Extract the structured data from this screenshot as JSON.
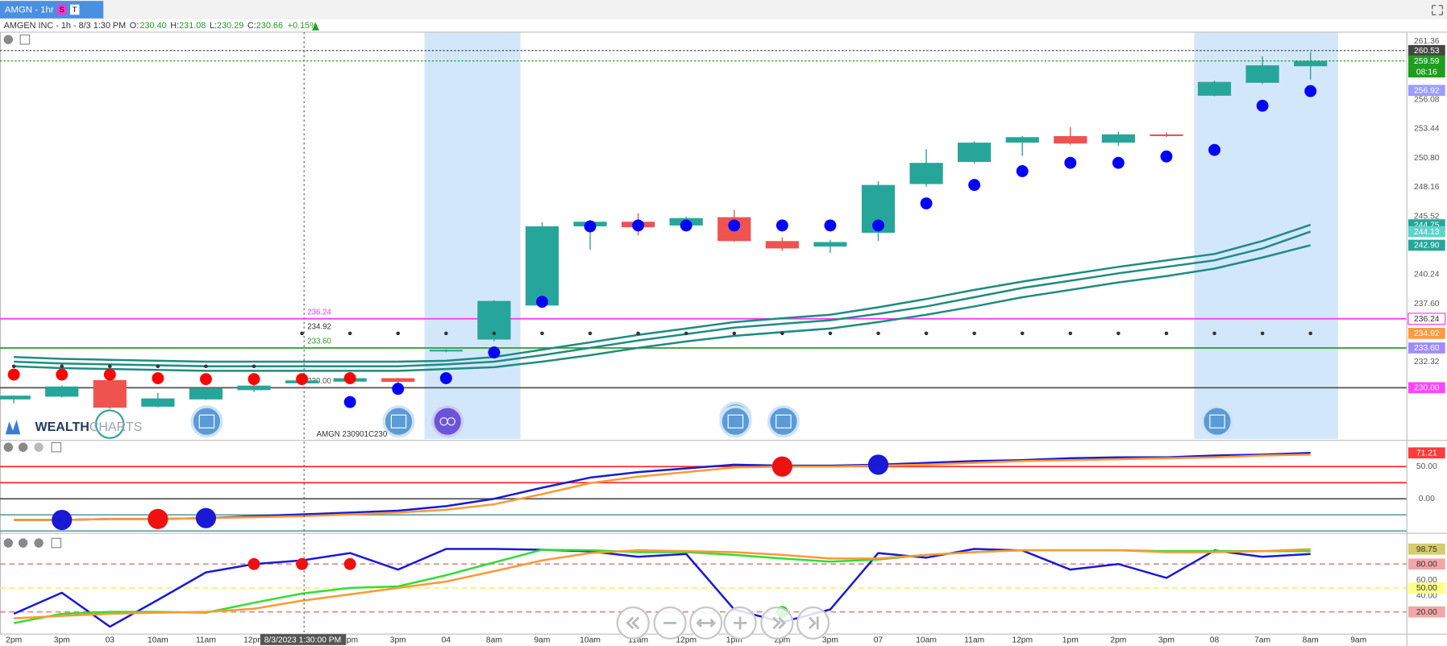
{
  "header": {
    "tab": "AMGN - 1hr",
    "badges": [
      "S",
      "T"
    ],
    "info": "AMGEN INC - 1h - 8/3 1:30 PM",
    "ohlc": [
      {
        "label": "O:",
        "value": "230.40"
      },
      {
        "label": "H:",
        "value": "231.08"
      },
      {
        "label": "L:",
        "value": "230.29"
      },
      {
        "label": "C:",
        "value": "230.66"
      }
    ],
    "change": "+0.15%"
  },
  "logo": {
    "part1": "WEALTH",
    "part2": "CHARTS"
  },
  "annotation": "AMGN 230901C230",
  "chart_data": [
    {
      "type": "candlestick",
      "categories": [
        "2pm",
        "3pm",
        "03",
        "10am",
        "11am",
        "12pm",
        null,
        "2pm",
        "3pm",
        "04",
        "8am",
        "9am",
        "10am",
        "11am",
        "12pm",
        "1pm",
        "2pm",
        "3pm",
        "07",
        "10am",
        "11am",
        "12pm",
        "1pm",
        "2pm",
        "3pm",
        "08",
        "7am",
        "8am",
        "9am"
      ],
      "crosshair_label": "8/3/2023 1:30:00 PM",
      "open": [
        228.94,
        229.19,
        230.69,
        228.28,
        228.94,
        229.78,
        230.4,
        230.55,
        230.86,
        233.28,
        234.36,
        237.44,
        244.61,
        245.03,
        244.69,
        245.44,
        243.28,
        242.78,
        244.03,
        248.44,
        250.44,
        252.19,
        252.78,
        252.19,
        252.94,
        256.44,
        257.61,
        259.11,
        null
      ],
      "high": [
        229.3,
        230.2,
        230.8,
        229.53,
        230.0,
        230.5,
        231.08,
        231.0,
        230.9,
        233.5,
        237.9,
        245.0,
        245.2,
        245.8,
        245.5,
        246.1,
        243.6,
        243.4,
        248.7,
        251.6,
        252.3,
        252.8,
        253.6,
        253.2,
        253.1,
        257.8,
        260.0,
        260.4,
        null
      ],
      "low": [
        228.6,
        229.1,
        228.1,
        228.2,
        228.9,
        229.6,
        230.29,
        230.4,
        230.4,
        233.2,
        234.2,
        237.3,
        242.5,
        243.8,
        244.4,
        243.2,
        242.4,
        242.2,
        243.3,
        248.2,
        250.3,
        251.0,
        252.0,
        251.9,
        252.7,
        256.4,
        257.5,
        257.9,
        null
      ],
      "close": [
        229.28,
        230.11,
        228.19,
        229.03,
        229.94,
        230.19,
        230.66,
        230.86,
        230.53,
        233.44,
        237.86,
        244.61,
        245.03,
        244.53,
        245.36,
        243.28,
        242.61,
        243.19,
        248.36,
        250.36,
        252.19,
        252.69,
        252.11,
        252.94,
        252.78,
        257.69,
        259.19,
        259.59,
        null
      ],
      "up_color": "#26a69a",
      "down_color": "#ef5350",
      "series": [
        {
          "color": "#1e8c82",
          "values": [
            232.78,
            232.61,
            232.53,
            232.44,
            232.36,
            232.36,
            232.36,
            232.36,
            232.36,
            232.44,
            232.78,
            233.44,
            234.11,
            234.78,
            235.36,
            235.94,
            236.28,
            236.61,
            237.28,
            238.03,
            238.86,
            239.61,
            240.28,
            240.94,
            241.53,
            242.11,
            243.28,
            244.75,
            null
          ]
        },
        {
          "color": "#1e8c82",
          "values": [
            232.36,
            232.19,
            232.11,
            232.03,
            231.94,
            231.94,
            231.94,
            231.94,
            231.94,
            232.11,
            232.36,
            232.94,
            233.61,
            234.28,
            234.86,
            235.44,
            235.78,
            236.11,
            236.69,
            237.36,
            238.19,
            239.03,
            239.69,
            240.36,
            240.94,
            241.53,
            242.61,
            244.13,
            null
          ]
        },
        {
          "color": "#1e8c82",
          "values": [
            231.94,
            231.78,
            231.69,
            231.61,
            231.53,
            231.53,
            231.53,
            231.53,
            231.53,
            231.69,
            231.86,
            232.36,
            232.94,
            233.61,
            234.19,
            234.69,
            235.03,
            235.36,
            235.94,
            236.61,
            237.36,
            238.19,
            238.86,
            239.53,
            240.11,
            240.78,
            241.78,
            242.9,
            null
          ]
        }
      ],
      "markers": [
        {
          "color": "#333333",
          "size": "small",
          "values": [
            231.94,
            231.94,
            231.94,
            231.94,
            231.94,
            231.94,
            234.92,
            234.92,
            234.92,
            234.92,
            234.92,
            234.92,
            234.92,
            234.92,
            234.92,
            234.92,
            234.92,
            234.92,
            234.92,
            234.92,
            234.92,
            234.92,
            234.92,
            234.92,
            234.92,
            234.92,
            234.92,
            234.92,
            null
          ]
        },
        {
          "color": "#ff0000",
          "size": "medium",
          "values": [
            231.19,
            231.19,
            231.19,
            230.86,
            230.78,
            230.78,
            230.78,
            230.86,
            null,
            null,
            null,
            null,
            null,
            null,
            null,
            null,
            null,
            null,
            null,
            null,
            null,
            null,
            null,
            null,
            null,
            null,
            null,
            null,
            null
          ]
        },
        {
          "color": "#0000ff",
          "size": "medium",
          "values": [
            null,
            null,
            null,
            null,
            null,
            null,
            null,
            228.7,
            229.9,
            230.86,
            233.19,
            237.78,
            244.61,
            244.69,
            244.69,
            244.69,
            244.69,
            244.69,
            244.69,
            246.69,
            248.36,
            249.61,
            250.36,
            250.36,
            250.94,
            251.53,
            255.53,
            256.86,
            null
          ]
        }
      ],
      "levels": [
        {
          "value": 236.24,
          "color": "#ff33ff",
          "style": "solid",
          "show_label": true
        },
        {
          "value": 234.92,
          "color": "#333333",
          "style": "none",
          "show_label": true
        },
        {
          "value": 233.6,
          "label": "233.60",
          "color": "#2e9a2e",
          "style": "solid",
          "show_label": true
        },
        {
          "value": 230,
          "label": "230.00",
          "color": "#555555",
          "style": "solid",
          "show_label": true
        }
      ],
      "ylim": [
        225.36,
        262.19
      ],
      "yticks": [
        261.36,
        256.08,
        253.44,
        {
          "value": 250.8,
          "label": "250.80"
        },
        248.16,
        245.52,
        240.24,
        {
          "value": 237.6,
          "label": "237.60"
        },
        232.32
      ],
      "price_tags": [
        {
          "value": 260.53,
          "color": "#454545",
          "text_color": "#ffffff",
          "line": "dotted"
        },
        {
          "value": 259.59,
          "color": "#1f9d1f",
          "text_color": "#ffffff",
          "line": "dotted",
          "countdown": "08:16"
        },
        {
          "value": 256.92,
          "color": "#9c9cff",
          "text_color": "#ffffff"
        },
        {
          "value": 244.75,
          "color": "#26a69a",
          "text_color": "#ffffff"
        },
        {
          "value": 244.13,
          "color": "#5fd3cb",
          "text_color": "#ffffff"
        },
        {
          "value": 242.9,
          "label": "242.90",
          "color": "#26a69a",
          "text_color": "#ffffff"
        },
        {
          "value": 236.24,
          "color": "#ffffff",
          "text_color": "#333333"
        },
        {
          "value": 234.92,
          "color": "#ff9944",
          "text_color": "#ffffff"
        },
        {
          "value": 233.6,
          "label": "233.60",
          "color": "#a08cff",
          "text_color": "#ffffff"
        },
        {
          "value": 230,
          "label": "230.00",
          "color": "#ff44ff",
          "text_color": "#ffffff"
        }
      ]
    },
    {
      "type": "line",
      "series": [
        {
          "color": "#1a1ad6",
          "values": [
            -32.9,
            -32.9,
            -31.4,
            -31.4,
            -30,
            -27.1,
            -24.3,
            -21.4,
            -18.6,
            -11.4,
            0,
            17.1,
            32.9,
            41.4,
            47.1,
            52.9,
            51.4,
            51.4,
            52.9,
            55.7,
            58.6,
            60,
            62.9,
            64.3,
            64.3,
            67.1,
            68.6,
            71.21,
            null
          ]
        },
        {
          "color": "#ff9933",
          "values": [
            -32.9,
            -32.9,
            -31.4,
            -31.4,
            -30,
            -28.6,
            -27.1,
            -24.3,
            -21.4,
            -17.1,
            -8.6,
            7.1,
            24.3,
            34.3,
            41.4,
            48.6,
            50,
            50,
            51.4,
            52.9,
            55.7,
            58.6,
            60,
            61.4,
            62.9,
            64.3,
            67.1,
            68.6,
            null
          ]
        }
      ],
      "markers": [
        {
          "color": "#1a1ad6",
          "size": "large",
          "values": [
            null,
            -32.9,
            null,
            null,
            -30,
            null,
            null,
            null,
            null,
            null,
            null,
            null,
            null,
            null,
            null,
            null,
            null,
            null,
            52.9,
            null,
            null,
            null,
            null,
            null,
            null,
            null,
            null,
            null,
            null
          ]
        },
        {
          "color": "#ee1111",
          "size": "large",
          "values": [
            null,
            null,
            null,
            -31.4,
            null,
            null,
            null,
            null,
            null,
            null,
            null,
            null,
            null,
            null,
            null,
            null,
            50,
            null,
            null,
            null,
            null,
            null,
            null,
            null,
            null,
            null,
            null,
            null,
            null
          ]
        }
      ],
      "levels": [
        {
          "value": 50,
          "color": "#ff2a2a",
          "style": "solid"
        },
        {
          "value": 25,
          "color": "#ff2a2a",
          "style": "solid"
        },
        {
          "value": 0,
          "color": "#555555",
          "style": "solid"
        },
        {
          "value": -25,
          "color": "#5f9ea0",
          "style": "solid"
        },
        {
          "value": -50,
          "color": "#5f9ea0",
          "style": "solid"
        }
      ],
      "ylim": [
        -50,
        88.6
      ],
      "yticks": [
        {
          "value": 50,
          "label": "50.00"
        },
        {
          "value": 0,
          "label": "0.00"
        }
      ],
      "price_tags": [
        {
          "value": 71.21,
          "color": "#ff3b3b",
          "text_color": "#ffffff"
        }
      ]
    },
    {
      "type": "line",
      "series": [
        {
          "color": "#1a1ad6",
          "values": [
            17.6,
            44,
            1.5,
            35,
            69.6,
            80,
            84.6,
            93.8,
            73,
            99,
            99,
            97.9,
            96,
            89,
            92.6,
            23,
            7.3,
            23,
            93.8,
            88,
            99,
            97,
            73,
            80,
            62.6,
            97,
            89,
            92.6,
            null
          ]
        },
        {
          "color": "#33dd33",
          "values": [
            6,
            17.6,
            20,
            20,
            19,
            31.5,
            43,
            50,
            52,
            66,
            82,
            97.9,
            97.4,
            94.9,
            94.9,
            91.5,
            87,
            83,
            85.7,
            91.5,
            94.9,
            97.4,
            97.4,
            97.4,
            96.2,
            96.2,
            96.2,
            96.2,
            null
          ]
        },
        {
          "color": "#ff9933",
          "values": [
            12,
            15,
            17.6,
            19,
            20,
            24,
            34,
            42,
            50,
            58,
            71,
            84.6,
            93.8,
            97.4,
            96.2,
            94.9,
            91.5,
            87,
            87,
            91.5,
            94.9,
            97.4,
            97.4,
            97.4,
            94.9,
            94.9,
            96.2,
            98.75,
            null
          ]
        }
      ],
      "markers": [
        {
          "color": "#ee1111",
          "size": "medium",
          "values": [
            null,
            null,
            null,
            null,
            null,
            80,
            80,
            80,
            null,
            null,
            null,
            null,
            null,
            null,
            null,
            null,
            null,
            null,
            null,
            null,
            null,
            null,
            null,
            null,
            null,
            null,
            null,
            null,
            null
          ]
        },
        {
          "color": "#33cc33",
          "size": "medium",
          "values": [
            null,
            null,
            null,
            null,
            null,
            null,
            null,
            null,
            null,
            null,
            null,
            null,
            null,
            null,
            null,
            null,
            20,
            null,
            null,
            null,
            null,
            null,
            null,
            null,
            null,
            null,
            null,
            null,
            null
          ]
        }
      ],
      "levels": [
        {
          "value": 80,
          "color": "#e08a8a",
          "style": "dashed"
        },
        {
          "value": 50,
          "color": "#f5f560",
          "style": "dashed"
        },
        {
          "value": 20,
          "color": "#e08a8a",
          "style": "dashed"
        }
      ],
      "ylim": [
        -6.6,
        115.7
      ],
      "yticks": [
        {
          "value": 60,
          "label": "60.00"
        },
        {
          "value": 40,
          "label": "40.00"
        }
      ],
      "price_tags": [
        {
          "value": 98.75,
          "color": "#d6cc6a",
          "text_color": "#333333"
        },
        {
          "value": 80,
          "label": "80.00",
          "color": "#f2a6a6",
          "text_color": "#333333"
        },
        {
          "value": 50,
          "label": "50.00",
          "color": "#ffff88",
          "text_color": "#333333"
        },
        {
          "value": 20,
          "label": "20.00",
          "color": "#f2a6a6",
          "text_color": "#333333"
        }
      ]
    }
  ]
}
